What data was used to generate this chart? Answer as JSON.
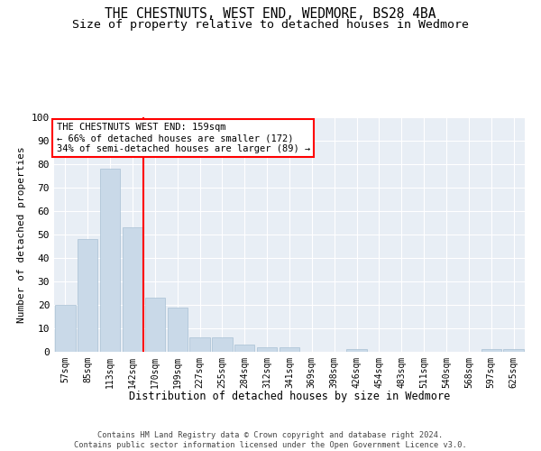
{
  "title": "THE CHESTNUTS, WEST END, WEDMORE, BS28 4BA",
  "subtitle": "Size of property relative to detached houses in Wedmore",
  "xlabel": "Distribution of detached houses by size in Wedmore",
  "ylabel": "Number of detached properties",
  "bar_labels": [
    "57sqm",
    "85sqm",
    "113sqm",
    "142sqm",
    "170sqm",
    "199sqm",
    "227sqm",
    "255sqm",
    "284sqm",
    "312sqm",
    "341sqm",
    "369sqm",
    "398sqm",
    "426sqm",
    "454sqm",
    "483sqm",
    "511sqm",
    "540sqm",
    "568sqm",
    "597sqm",
    "625sqm"
  ],
  "bar_values": [
    20,
    48,
    78,
    53,
    23,
    19,
    6,
    6,
    3,
    2,
    2,
    0,
    0,
    1,
    0,
    0,
    0,
    0,
    0,
    1,
    1
  ],
  "bar_color": "#c9d9e8",
  "bar_edgecolor": "#a8c0d4",
  "vline_x": 4.0,
  "vline_color": "red",
  "annotation_text": "THE CHESTNUTS WEST END: 159sqm\n← 66% of detached houses are smaller (172)\n34% of semi-detached houses are larger (89) →",
  "annotation_box_edgecolor": "red",
  "annotation_box_facecolor": "white",
  "ylim": [
    0,
    100
  ],
  "yticks": [
    0,
    10,
    20,
    30,
    40,
    50,
    60,
    70,
    80,
    90,
    100
  ],
  "footnote": "Contains HM Land Registry data © Crown copyright and database right 2024.\nContains public sector information licensed under the Open Government Licence v3.0.",
  "bg_color": "#e8eef5",
  "grid_color": "white",
  "title_fontsize": 10.5,
  "subtitle_fontsize": 9.5
}
